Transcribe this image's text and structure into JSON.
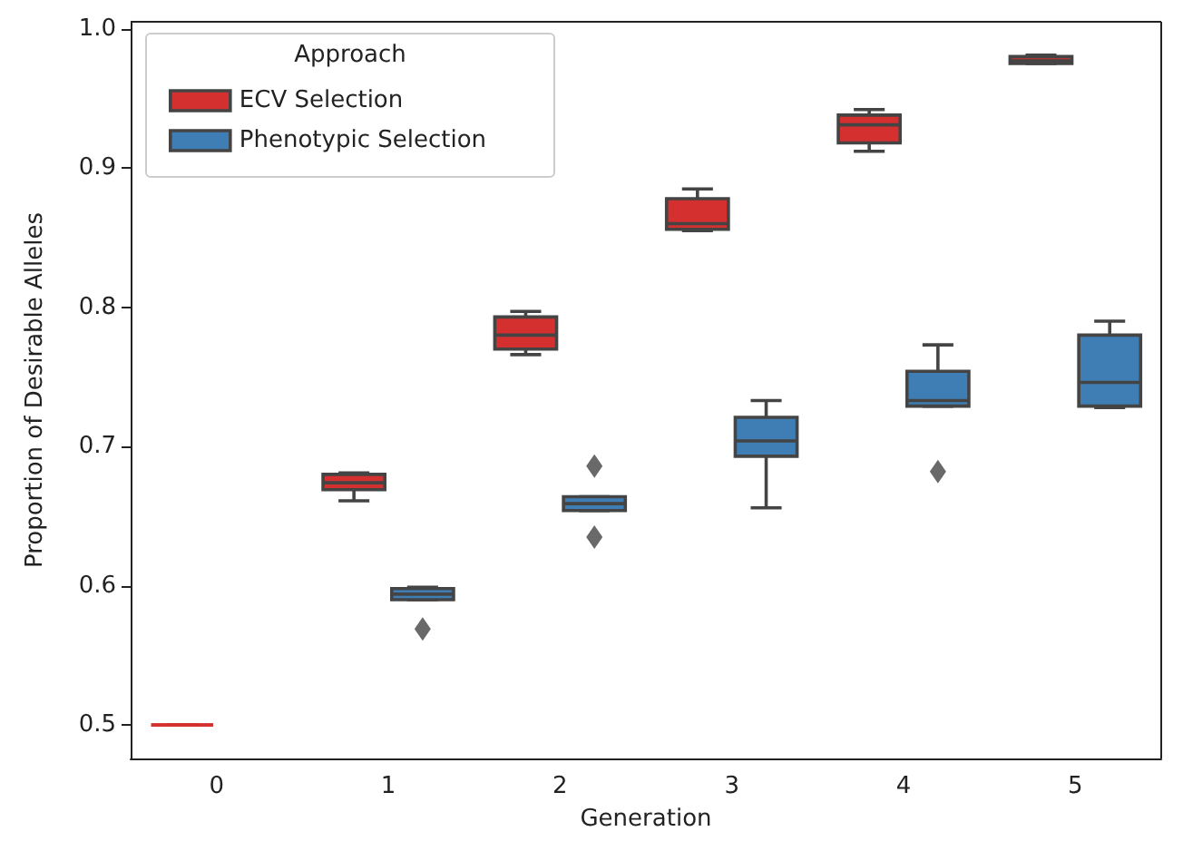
{
  "chart_data": {
    "type": "box",
    "xlabel": "Generation",
    "ylabel": "Proportion of Desirable Alleles",
    "legend_title": "Approach",
    "legend": "top left",
    "categories": [
      "0",
      "1",
      "2",
      "3",
      "4",
      "5"
    ],
    "ylim": [
      0.476,
      1.005
    ],
    "yticks": [
      0.5,
      0.6,
      0.7,
      0.8,
      0.9,
      {
        "value": 1,
        "label": "1.0"
      }
    ],
    "series": [
      {
        "name": "ECV Selection",
        "color": "#d3302f",
        "boxes": [
          {
            "low": 0.5,
            "q1": 0.5,
            "median": 0.5,
            "q3": 0.5,
            "high": 0.5
          },
          {
            "low": 0.661,
            "q1": 0.669,
            "median": 0.674,
            "q3": 0.68,
            "high": 0.681
          },
          {
            "low": 0.766,
            "q1": 0.77,
            "median": 0.78,
            "q3": 0.793,
            "high": 0.797
          },
          {
            "low": 0.855,
            "q1": 0.856,
            "median": 0.86,
            "q3": 0.878,
            "high": 0.885
          },
          {
            "low": 0.912,
            "q1": 0.918,
            "median": 0.931,
            "q3": 0.938,
            "high": 0.942
          },
          {
            "low": 0.975,
            "q1": 0.975,
            "median": 0.977,
            "q3": 0.98,
            "high": 0.981
          }
        ]
      },
      {
        "name": "Phenotypic Selection",
        "color": "#3f7eb5",
        "boxes": [
          null,
          {
            "low": 0.59,
            "q1": 0.59,
            "median": 0.594,
            "q3": 0.598,
            "high": 0.599,
            "outliers": [
              0.569
            ]
          },
          {
            "low": 0.654,
            "q1": 0.654,
            "median": 0.659,
            "q3": 0.664,
            "high": 0.664,
            "outliers": [
              0.686,
              0.635
            ]
          },
          {
            "low": 0.656,
            "q1": 0.693,
            "median": 0.704,
            "q3": 0.721,
            "high": 0.733
          },
          {
            "low": 0.729,
            "q1": 0.729,
            "median": 0.733,
            "q3": 0.754,
            "high": 0.773,
            "outliers": [
              0.682
            ]
          },
          {
            "low": 0.728,
            "q1": 0.729,
            "median": 0.746,
            "q3": 0.78,
            "high": 0.79
          }
        ]
      }
    ]
  }
}
